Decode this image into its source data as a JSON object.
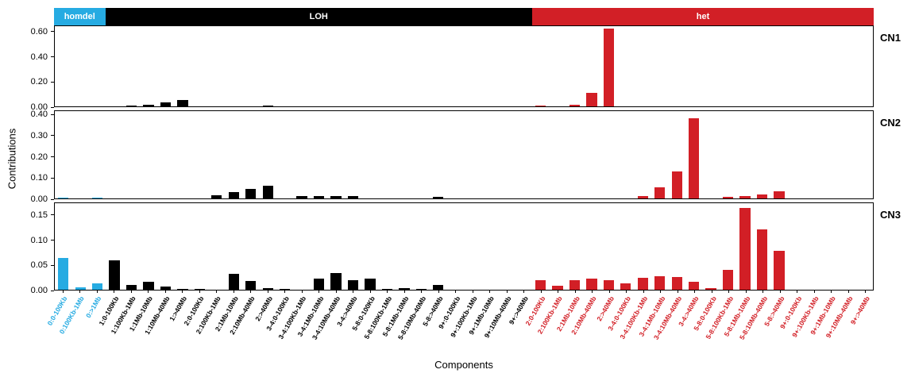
{
  "figure": {
    "y_axis_title": "Contributions",
    "x_axis_title": "Components",
    "groups": [
      {
        "name": "homdel",
        "color": "#26ABE2",
        "count": 3
      },
      {
        "name": "LOH",
        "color": "#000000",
        "count": 25
      },
      {
        "name": "het",
        "color": "#D21F26",
        "count": 20
      }
    ]
  },
  "chart_data": {
    "type": "bar",
    "title": "",
    "xlabel": "Components",
    "ylabel": "Contributions",
    "legend": "none",
    "grid": false,
    "categories": [
      "0:0-100Kb",
      "0:100Kb-1Mb",
      "0:>1Mb",
      "1:0-100Kb",
      "1:100Kb-1Mb",
      "1:1Mb-10Mb",
      "1:10Mb-40Mb",
      "1:>40Mb",
      "2:0-100Kb",
      "2:100Kb-1Mb",
      "2:1Mb-10Mb",
      "2:10Mb-40Mb",
      "2:>40Mb",
      "3-4:0-100Kb",
      "3-4:100Kb-1Mb",
      "3-4:1Mb-10Mb",
      "3-4:10Mb-40Mb",
      "3-4:>40Mb",
      "5-8:0-100Kb",
      "5-8:100Kb-1Mb",
      "5-8:1Mb-10Mb",
      "5-8:10Mb-40Mb",
      "5-8:>40Mb",
      "9+:0-100Kb",
      "9+:100Kb-1Mb",
      "9+:1Mb-10Mb",
      "9+:10Mb-40Mb",
      "9+:>40Mb",
      "2:0-100Kb",
      "2:100Kb-1Mb",
      "2:1Mb-10Mb",
      "2:10Mb-40Mb",
      "2:>40Mb",
      "3-4:0-100Kb",
      "3-4:100Kb-1Mb",
      "3-4:1Mb-10Mb",
      "3-4:10Mb-40Mb",
      "3-4:>40Mb",
      "5-8:0-100Kb",
      "5-8:100Kb-1Mb",
      "5-8:1Mb-10Mb",
      "5-8:10Mb-40Mb",
      "5-8:>40Mb",
      "9+:0-100Kb",
      "9+:100Kb-1Mb",
      "9+:1Mb-10Mb",
      "9+:10Mb-40Mb",
      "9+:>40Mb"
    ],
    "panels": [
      {
        "name": "CN1",
        "ylim": [
          0,
          0.65
        ],
        "ytick_values": [
          0,
          0.2,
          0.4,
          0.6
        ],
        "ytick_labels": [
          "0.00",
          "0.20",
          "0.40",
          "0.60"
        ],
        "values": [
          0,
          0,
          0,
          0,
          0.005,
          0.012,
          0.03,
          0.05,
          0,
          0,
          0,
          0,
          0.005,
          0,
          0,
          0,
          0,
          0,
          0,
          0,
          0,
          0,
          0,
          0,
          0,
          0,
          0,
          0,
          0.004,
          0,
          0.01,
          0.11,
          0.63,
          0,
          0,
          0,
          0,
          0,
          0,
          0,
          0,
          0,
          0,
          0,
          0,
          0,
          0,
          0
        ]
      },
      {
        "name": "CN2",
        "ylim": [
          0,
          0.42
        ],
        "ytick_values": [
          0,
          0.1,
          0.2,
          0.3,
          0.4
        ],
        "ytick_labels": [
          "0.00",
          "0.10",
          "0.20",
          "0.30",
          "0.40"
        ],
        "values": [
          0.003,
          0,
          0.002,
          0,
          0,
          0,
          0,
          0,
          0,
          0.015,
          0.03,
          0.045,
          0.06,
          0,
          0.01,
          0.01,
          0.01,
          0.012,
          0,
          0,
          0,
          0,
          0.008,
          0,
          0,
          0,
          0,
          0,
          0,
          0,
          0,
          0,
          0,
          0,
          0.012,
          0.055,
          0.13,
          0.385,
          0,
          0.008,
          0.012,
          0.02,
          0.035,
          0,
          0,
          0,
          0,
          0
        ]
      },
      {
        "name": "CN3",
        "ylim": [
          0,
          0.175
        ],
        "ytick_values": [
          0,
          0.05,
          0.1,
          0.15
        ],
        "ytick_labels": [
          "0.00",
          "0.05",
          "0.10",
          "0.15"
        ],
        "values": [
          0.065,
          0.005,
          0.013,
          0.06,
          0.01,
          0.016,
          0.007,
          0.002,
          0.002,
          0,
          0.032,
          0.017,
          0.003,
          0.002,
          0,
          0.022,
          0.033,
          0.02,
          0.022,
          0.002,
          0.004,
          0.002,
          0.01,
          0,
          0,
          0,
          0,
          0,
          0.02,
          0.008,
          0.02,
          0.022,
          0.02,
          0.013,
          0.024,
          0.027,
          0.025,
          0.016,
          0.003,
          0.04,
          0.165,
          0.122,
          0.078,
          0,
          0,
          0,
          0,
          0
        ]
      }
    ]
  }
}
